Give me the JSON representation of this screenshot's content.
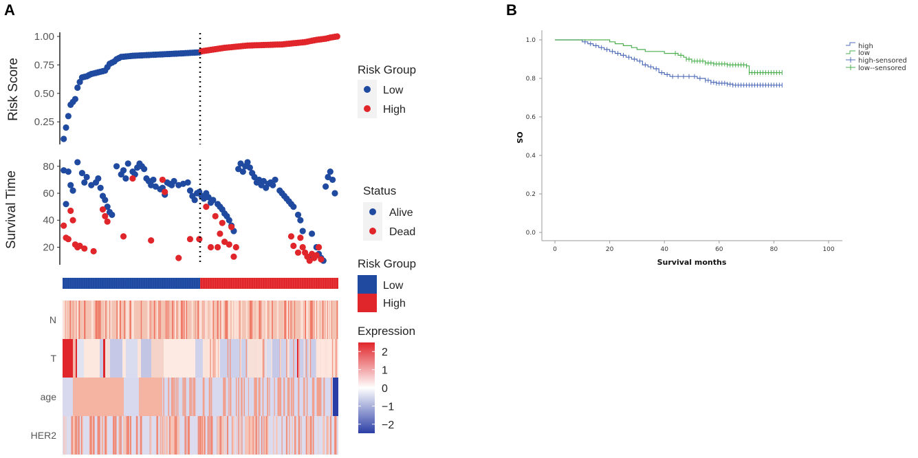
{
  "panel_a": {
    "label": "A",
    "risk_legend_title": "Risk Group",
    "status_legend_title": "Status",
    "riskbar_legend_title": "Risk Group",
    "expression_legend_title": "Expression",
    "colors": {
      "low": "#1f4aa0",
      "high": "#e0262b",
      "dead": "#e0262b",
      "alive": "#1f4aa0"
    }
  },
  "panel_b": {
    "label": "B"
  },
  "chart_data": [
    {
      "id": "risk_score",
      "type": "scatter",
      "title": "",
      "xlabel": "",
      "ylabel": "Risk Score",
      "ylim": [
        0.07,
        1.03
      ],
      "y_ticks": [
        0.25,
        0.5,
        0.75,
        1.0
      ],
      "y_tick_labels": [
        "0.25",
        "0.50",
        "0.75",
        "1.00"
      ],
      "n_patients": 120,
      "cutoff_index": 60,
      "legend_title": "Risk Group",
      "groups": [
        "Low",
        "High"
      ],
      "anchors": [
        [
          0,
          0.1
        ],
        [
          1,
          0.2
        ],
        [
          2,
          0.3
        ],
        [
          3,
          0.4
        ],
        [
          5,
          0.45
        ],
        [
          6,
          0.55
        ],
        [
          7,
          0.6
        ],
        [
          8,
          0.64
        ],
        [
          10,
          0.65
        ],
        [
          12,
          0.67
        ],
        [
          16,
          0.69
        ],
        [
          18,
          0.7
        ],
        [
          19,
          0.73
        ],
        [
          20,
          0.76
        ],
        [
          22,
          0.78
        ],
        [
          23,
          0.8
        ],
        [
          25,
          0.82
        ],
        [
          30,
          0.83
        ],
        [
          40,
          0.84
        ],
        [
          50,
          0.85
        ],
        [
          59,
          0.86
        ],
        [
          60,
          0.87
        ],
        [
          70,
          0.9
        ],
        [
          80,
          0.92
        ],
        [
          95,
          0.93
        ],
        [
          105,
          0.95
        ],
        [
          110,
          0.97
        ],
        [
          114,
          0.98
        ],
        [
          116,
          0.99
        ],
        [
          119,
          1.0
        ]
      ]
    },
    {
      "id": "survival_time",
      "type": "scatter",
      "ylabel": "Survival Time",
      "ylim": [
        8,
        85
      ],
      "y_ticks": [
        20,
        40,
        60,
        80
      ],
      "y_tick_labels": [
        "20",
        "40",
        "60",
        "80"
      ],
      "legend_title": "Status",
      "series": [
        {
          "name": "Alive",
          "points": [
            [
              0,
              77
            ],
            [
              1,
              52
            ],
            [
              2,
              76
            ],
            [
              3,
              66
            ],
            [
              4,
              62
            ],
            [
              6,
              83
            ],
            [
              8,
              75
            ],
            [
              9,
              68
            ],
            [
              10,
              72
            ],
            [
              12,
              66
            ],
            [
              14,
              68
            ],
            [
              15,
              71
            ],
            [
              16,
              64
            ],
            [
              17,
              58
            ],
            [
              18,
              55
            ],
            [
              19,
              50
            ],
            [
              20,
              46
            ],
            [
              21,
              44
            ],
            [
              23,
              80
            ],
            [
              25,
              74
            ],
            [
              26,
              77
            ],
            [
              27,
              71
            ],
            [
              28,
              82
            ],
            [
              30,
              76
            ],
            [
              31,
              74
            ],
            [
              32,
              79
            ],
            [
              33,
              82
            ],
            [
              34,
              80
            ],
            [
              35,
              78
            ],
            [
              36,
              71
            ],
            [
              37,
              69
            ],
            [
              38,
              66
            ],
            [
              39,
              70
            ],
            [
              40,
              65
            ],
            [
              42,
              63
            ],
            [
              43,
              64
            ],
            [
              44,
              59
            ],
            [
              45,
              68
            ],
            [
              46,
              67
            ],
            [
              47,
              66
            ],
            [
              48,
              69
            ],
            [
              50,
              66
            ],
            [
              52,
              67
            ],
            [
              54,
              68
            ],
            [
              55,
              62
            ],
            [
              56,
              58
            ],
            [
              57,
              55
            ],
            [
              58,
              60
            ],
            [
              59,
              61
            ],
            [
              60,
              58
            ],
            [
              61,
              56
            ],
            [
              62,
              60
            ],
            [
              63,
              57
            ],
            [
              64,
              53
            ],
            [
              65,
              55
            ],
            [
              67,
              52
            ],
            [
              68,
              50
            ],
            [
              69,
              48
            ],
            [
              70,
              45
            ],
            [
              71,
              43
            ],
            [
              72,
              40
            ],
            [
              73,
              36
            ],
            [
              74,
              32
            ],
            [
              76,
              78
            ],
            [
              77,
              82
            ],
            [
              78,
              76
            ],
            [
              79,
              80
            ],
            [
              80,
              83
            ],
            [
              81,
              79
            ],
            [
              82,
              75
            ],
            [
              83,
              72
            ],
            [
              84,
              68
            ],
            [
              85,
              70
            ],
            [
              86,
              66
            ],
            [
              87,
              69
            ],
            [
              88,
              64
            ],
            [
              89,
              67
            ],
            [
              90,
              68
            ],
            [
              91,
              66
            ],
            [
              92,
              70
            ],
            [
              94,
              62
            ],
            [
              95,
              60
            ],
            [
              96,
              58
            ],
            [
              97,
              56
            ],
            [
              98,
              54
            ],
            [
              99,
              52
            ],
            [
              100,
              50
            ],
            [
              102,
              44
            ],
            [
              103,
              40
            ],
            [
              104,
              32
            ],
            [
              107,
              12
            ],
            [
              108,
              30
            ],
            [
              110,
              20
            ],
            [
              111,
              15
            ],
            [
              112,
              12
            ],
            [
              113,
              10
            ],
            [
              114,
              65
            ],
            [
              115,
              72
            ],
            [
              116,
              76
            ],
            [
              117,
              70
            ],
            [
              118,
              60
            ]
          ]
        },
        {
          "name": "Dead",
          "points": [
            [
              0,
              36
            ],
            [
              1,
              27
            ],
            [
              2,
              26
            ],
            [
              3,
              47
            ],
            [
              4,
              40
            ],
            [
              5,
              22
            ],
            [
              6,
              20
            ],
            [
              7,
              21
            ],
            [
              9,
              19
            ],
            [
              13,
              17
            ],
            [
              17,
              48
            ],
            [
              18,
              43
            ],
            [
              19,
              39
            ],
            [
              26,
              28
            ],
            [
              30,
              71
            ],
            [
              38,
              25
            ],
            [
              43,
              70
            ],
            [
              44,
              61
            ],
            [
              50,
              12
            ],
            [
              55,
              26
            ],
            [
              59,
              26
            ],
            [
              62,
              50
            ],
            [
              64,
              20
            ],
            [
              66,
              43
            ],
            [
              67,
              20
            ],
            [
              68,
              30
            ],
            [
              69,
              38
            ],
            [
              70,
              24
            ],
            [
              72,
              22
            ],
            [
              73,
              35
            ],
            [
              74,
              13
            ],
            [
              75,
              20
            ],
            [
              99,
              28
            ],
            [
              100,
              21
            ],
            [
              102,
              16
            ],
            [
              103,
              27
            ],
            [
              104,
              20
            ],
            [
              105,
              16
            ],
            [
              106,
              13
            ],
            [
              107,
              10
            ],
            [
              108,
              15
            ],
            [
              109,
              12
            ],
            [
              110,
              14
            ],
            [
              111,
              20
            ],
            [
              112,
              11
            ]
          ]
        }
      ]
    },
    {
      "id": "expression_heatmap",
      "type": "heatmap",
      "rows": [
        "N",
        "T",
        "age",
        "HER2"
      ],
      "legend_title": "Expression",
      "color_scale_ticks": [
        2,
        1,
        0,
        -1,
        -2
      ],
      "color_scale_labels": [
        "2",
        "1",
        "0",
        "−1",
        "−2"
      ],
      "riskbar_groups": [
        "Low",
        "High"
      ],
      "riskbar_split_index": 60
    },
    {
      "id": "km_survival",
      "type": "line",
      "title": "",
      "xlabel": "Survival months",
      "ylabel": "OS",
      "xlim": [
        0,
        100
      ],
      "ylim": [
        0.0,
        1.0
      ],
      "x_ticks": [
        0,
        20,
        40,
        60,
        80,
        100
      ],
      "x_tick_labels": [
        "0",
        "20",
        "40",
        "60",
        "80",
        "100"
      ],
      "y_ticks": [
        0.0,
        0.2,
        0.4,
        0.6,
        0.8,
        1.0
      ],
      "y_tick_labels": [
        "0.0",
        "0.2",
        "0.4",
        "0.6",
        "0.8",
        "1.0"
      ],
      "legend": [
        "high",
        "low",
        "high-sensored",
        "low--sensored"
      ],
      "series": [
        {
          "name": "high",
          "color": "#4e6cb8",
          "points": [
            [
              0,
              1.0
            ],
            [
              9,
              1.0
            ],
            [
              10,
              0.99
            ],
            [
              12,
              0.98
            ],
            [
              14,
              0.97
            ],
            [
              16,
              0.96
            ],
            [
              18,
              0.95
            ],
            [
              20,
              0.94
            ],
            [
              22,
              0.93
            ],
            [
              24,
              0.92
            ],
            [
              26,
              0.91
            ],
            [
              28,
              0.9
            ],
            [
              30,
              0.89
            ],
            [
              32,
              0.87
            ],
            [
              34,
              0.86
            ],
            [
              36,
              0.85
            ],
            [
              38,
              0.83
            ],
            [
              40,
              0.82
            ],
            [
              42,
              0.81
            ],
            [
              50,
              0.81
            ],
            [
              52,
              0.8
            ],
            [
              55,
              0.79
            ],
            [
              57,
              0.78
            ],
            [
              59,
              0.775
            ],
            [
              63,
              0.77
            ],
            [
              65,
              0.765
            ],
            [
              83,
              0.765
            ]
          ],
          "censored": [
            11,
            13,
            15,
            17,
            19,
            21,
            23,
            25,
            27,
            29,
            31,
            33,
            35,
            37,
            39,
            41,
            43,
            45,
            47,
            49,
            51,
            53,
            55,
            56,
            57,
            58,
            59,
            60,
            61,
            62,
            63,
            64,
            65,
            66,
            67,
            68,
            69,
            70,
            71,
            72,
            73,
            74,
            75,
            76,
            77,
            78,
            79,
            80,
            81,
            82,
            83
          ]
        },
        {
          "name": "low",
          "color": "#4caf4f",
          "points": [
            [
              0,
              1.0
            ],
            [
              18,
              1.0
            ],
            [
              20,
              0.99
            ],
            [
              22,
              0.98
            ],
            [
              25,
              0.97
            ],
            [
              28,
              0.96
            ],
            [
              30,
              0.95
            ],
            [
              33,
              0.94
            ],
            [
              40,
              0.93
            ],
            [
              45,
              0.92
            ],
            [
              47,
              0.91
            ],
            [
              48,
              0.9
            ],
            [
              50,
              0.89
            ],
            [
              55,
              0.88
            ],
            [
              58,
              0.875
            ],
            [
              63,
              0.87
            ],
            [
              70,
              0.865
            ],
            [
              71,
              0.83
            ],
            [
              83,
              0.83
            ]
          ],
          "censored": [
            44,
            46,
            48,
            49,
            50,
            51,
            52,
            53,
            54,
            55,
            56,
            57,
            58,
            59,
            60,
            61,
            62,
            63,
            64,
            65,
            66,
            67,
            68,
            69,
            70,
            71,
            72,
            73,
            74,
            75,
            76,
            77,
            78,
            79,
            80,
            81,
            82,
            83
          ]
        }
      ]
    }
  ]
}
